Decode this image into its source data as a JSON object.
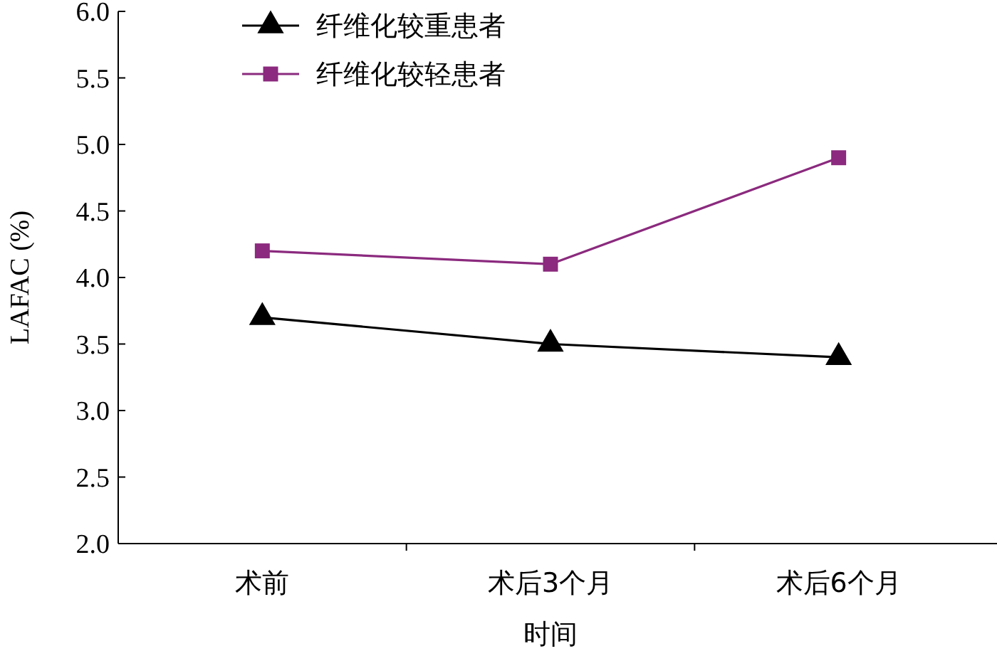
{
  "chart_data": {
    "type": "line",
    "xlabel": "时间",
    "ylabel": "LAFAC (%)",
    "categories": [
      "术前",
      "术后3个月",
      "术后6个月"
    ],
    "series": [
      {
        "name": "纤维化较重患者",
        "color": "#000000",
        "marker": "triangle",
        "values": [
          3.7,
          3.5,
          3.4
        ]
      },
      {
        "name": "纤维化较轻患者",
        "color": "#8b2a7e",
        "marker": "square",
        "values": [
          4.2,
          4.1,
          4.9
        ]
      }
    ],
    "ylim": [
      2,
      6
    ],
    "yticks": [
      {
        "value": 2,
        "label": "2.0"
      },
      {
        "value": 2.5,
        "label": "2.5"
      },
      {
        "value": 3,
        "label": "3.0"
      },
      {
        "value": 3.5,
        "label": "3.5"
      },
      {
        "value": 4,
        "label": "4.0"
      },
      {
        "value": 4.5,
        "label": "4.5"
      },
      {
        "value": 5,
        "label": "5.0"
      },
      {
        "value": 5.5,
        "label": "5.5"
      },
      {
        "value": 6,
        "label": "6.0"
      }
    ],
    "grid": false,
    "legend": "top left"
  }
}
